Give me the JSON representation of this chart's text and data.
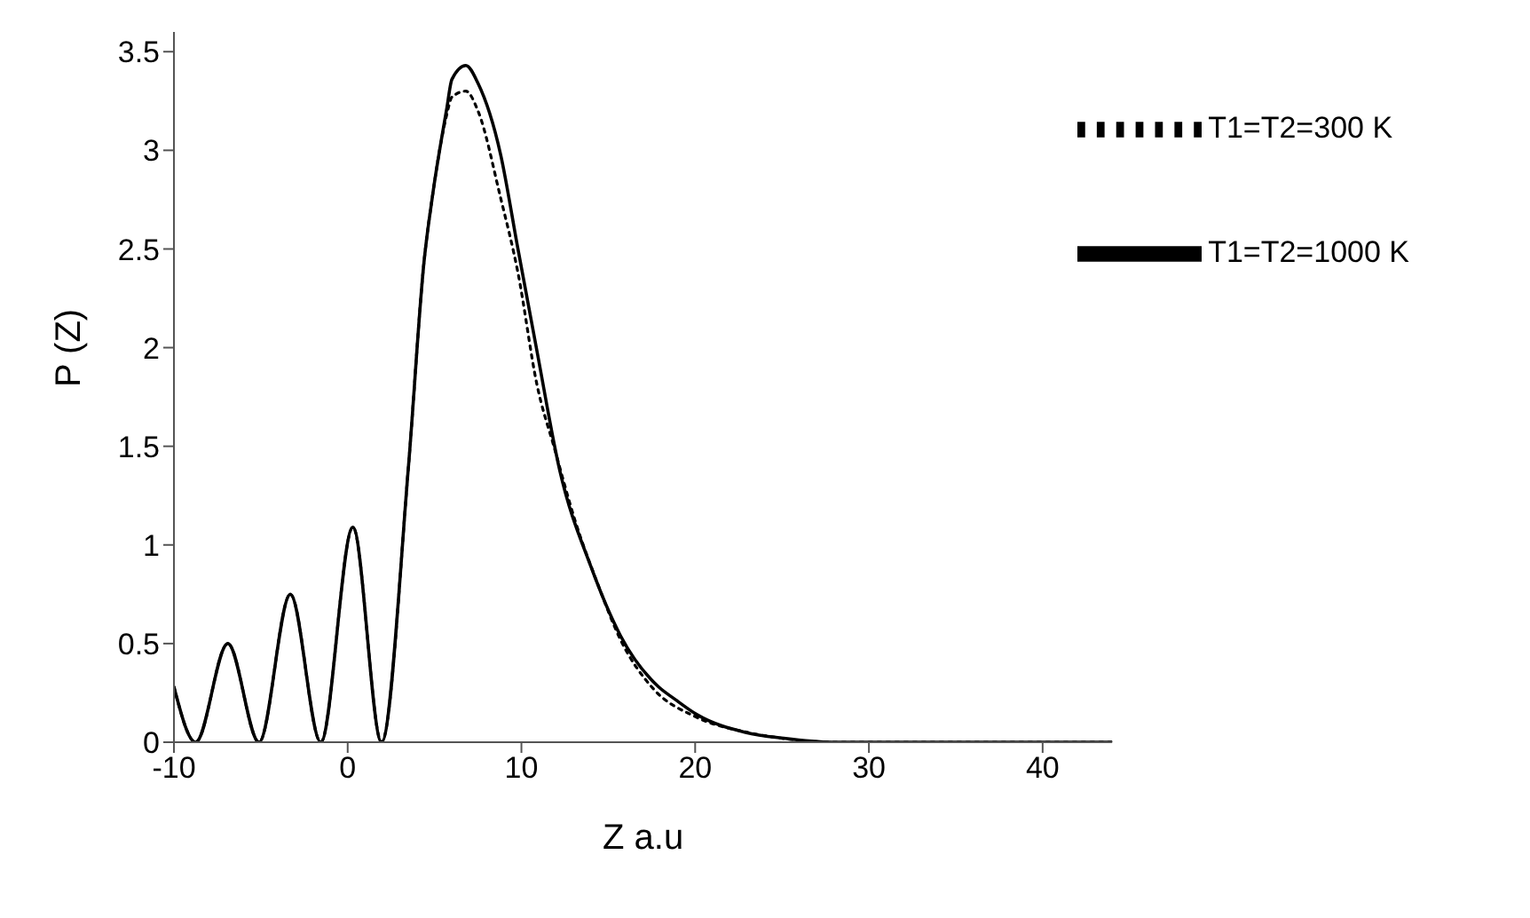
{
  "chart_data": {
    "type": "line",
    "xlabel": "Z a.u",
    "ylabel": "P (Z)",
    "xlim": [
      -10,
      44
    ],
    "xticks": [
      -10,
      0,
      10,
      20,
      30,
      40
    ],
    "ylim": [
      0,
      3.6
    ],
    "yticks": [
      0,
      0.5,
      1,
      1.5,
      2,
      2.5,
      3,
      3.5
    ],
    "grid": false,
    "legend": "top right",
    "marker": "none",
    "series": [
      {
        "name": "T1=T2=300 K",
        "color": "#000000",
        "line_style": "dotted",
        "x": [
          -10,
          -8.75,
          -6.9,
          -5.1,
          -3.3,
          -1.55,
          0.3,
          1.95,
          3.5,
          4.4,
          4.9,
          5.7,
          6.0,
          6.8,
          7.5,
          8.8,
          9.8,
          10.9,
          11.9,
          13.1,
          14.4,
          15.7,
          17.6,
          20,
          23,
          25,
          28,
          35,
          44
        ],
        "values": [
          0.28,
          0,
          0.5,
          0,
          0.75,
          0,
          1.09,
          0,
          1.4,
          2.44,
          2.78,
          3.18,
          3.27,
          3.3,
          3.2,
          2.76,
          2.38,
          1.81,
          1.49,
          1.12,
          0.8,
          0.52,
          0.27,
          0.13,
          0.05,
          0.02,
          0,
          0,
          0
        ]
      },
      {
        "name": "T1=T2=1000 K",
        "color": "#000000",
        "line_style": "solid",
        "x": [
          -10,
          -8.75,
          -6.9,
          -5.1,
          -3.3,
          -1.55,
          0.3,
          1.95,
          3.5,
          4.4,
          4.9,
          5.7,
          6.0,
          6.8,
          7.5,
          8.8,
          9.8,
          10.9,
          12.2,
          14.0,
          15.7,
          17.9,
          18.8,
          20.1,
          22.9,
          25.1,
          27.9,
          35,
          44
        ],
        "values": [
          0.28,
          0,
          0.5,
          0,
          0.75,
          0,
          1.09,
          0,
          1.4,
          2.44,
          2.78,
          3.21,
          3.36,
          3.43,
          3.34,
          2.98,
          2.5,
          1.98,
          1.38,
          0.89,
          0.54,
          0.28,
          0.22,
          0.14,
          0.05,
          0.02,
          0,
          0,
          0
        ]
      }
    ]
  }
}
